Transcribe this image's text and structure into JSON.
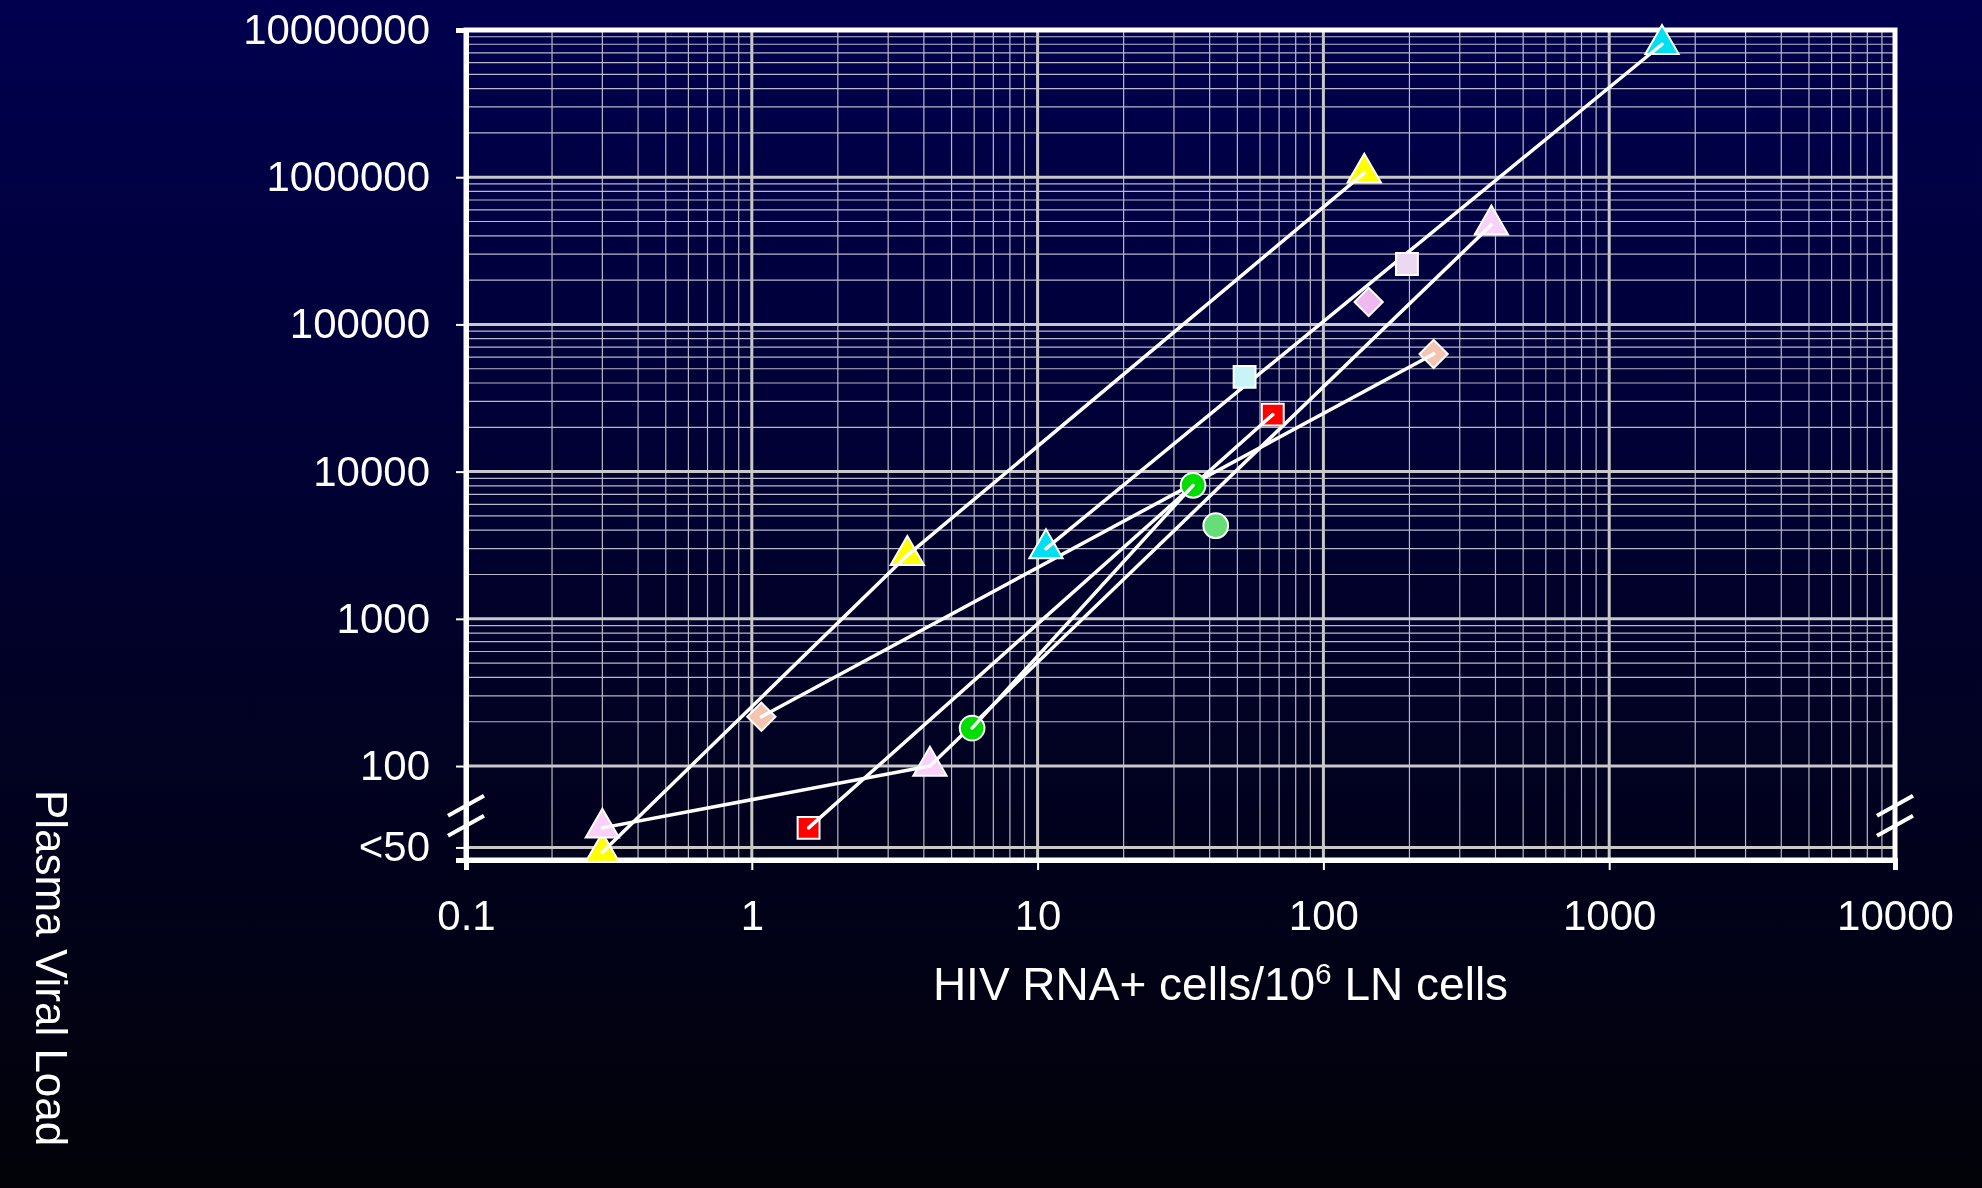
{
  "chart_data": {
    "type": "scatter",
    "xlabel": "HIV RNA+ cells/10$^{6}$ LN cells",
    "ylabel": "Plasma Viral Load",
    "log": "xy",
    "grid": true,
    "line_style": "solid",
    "xlim": [
      0.1,
      10000
    ],
    "xticks": [
      0.1,
      1,
      10,
      100,
      1000,
      10000
    ],
    "ylim": [
      23,
      10000000
    ],
    "yticks": [
      {
        "value": 28,
        "label": "<50"
      },
      100,
      1000,
      10000,
      100000,
      1000000,
      10000000
    ],
    "series": [
      {
        "type": "line",
        "marker": "triangle",
        "color": "#ffff00",
        "x": [
          0.3,
          3.5,
          139
        ],
        "values": [
          26,
          2700,
          1070000
        ]
      },
      {
        "type": "line",
        "marker": "diamond",
        "color": "#f4c4b0",
        "x": [
          1.08,
          243
        ],
        "values": [
          216,
          63000
        ]
      },
      {
        "type": "line",
        "marker": "triangle",
        "color": "#00e0f0",
        "x": [
          10.7,
          1530
        ],
        "values": [
          3000,
          8000000
        ]
      },
      {
        "marker": "square",
        "color": "#c8f4f8",
        "x": [
          53
        ],
        "values": [
          44000
        ]
      },
      {
        "marker": "square",
        "color": "#ecd8f0",
        "x": [
          196
        ],
        "values": [
          257000
        ]
      },
      {
        "marker": "diamond",
        "color": "#f0b8f0",
        "x": [
          144
        ],
        "values": [
          142000
        ]
      },
      {
        "type": "line",
        "marker": "triangle",
        "color": "#f8d0f8",
        "x": [
          0.3,
          4.2,
          387
        ],
        "values": [
          38,
          100,
          475000
        ]
      },
      {
        "type": "line",
        "marker": "square",
        "color": "#ff0000",
        "x": [
          1.58,
          66.5
        ],
        "values": [
          38,
          24400
        ]
      },
      {
        "type": "line",
        "marker": "circle",
        "color": "#00dd00",
        "x": [
          5.9,
          35
        ],
        "values": [
          181,
          8070
        ]
      },
      {
        "marker": "circle",
        "color": "#66dd77",
        "x": [
          42
        ],
        "values": [
          4290
        ]
      }
    ]
  }
}
